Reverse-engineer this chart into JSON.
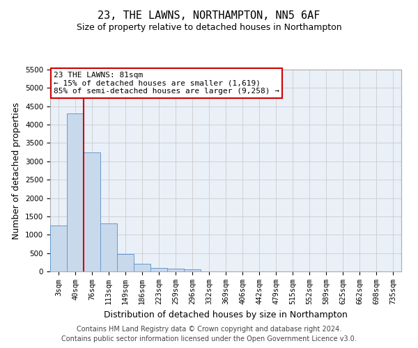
{
  "title": "23, THE LAWNS, NORTHAMPTON, NN5 6AF",
  "subtitle": "Size of property relative to detached houses in Northampton",
  "xlabel": "Distribution of detached houses by size in Northampton",
  "ylabel": "Number of detached properties",
  "footer_line1": "Contains HM Land Registry data © Crown copyright and database right 2024.",
  "footer_line2": "Contains public sector information licensed under the Open Government Licence v3.0.",
  "annotation_line1": "23 THE LAWNS: 81sqm",
  "annotation_line2": "← 15% of detached houses are smaller (1,619)",
  "annotation_line3": "85% of semi-detached houses are larger (9,258) →",
  "bar_categories": [
    "3sqm",
    "40sqm",
    "76sqm",
    "113sqm",
    "149sqm",
    "186sqm",
    "223sqm",
    "259sqm",
    "296sqm",
    "332sqm",
    "369sqm",
    "406sqm",
    "442sqm",
    "479sqm",
    "515sqm",
    "552sqm",
    "589sqm",
    "625sqm",
    "662sqm",
    "698sqm",
    "735sqm"
  ],
  "bar_values": [
    1250,
    4300,
    3250,
    1300,
    480,
    210,
    100,
    70,
    50,
    0,
    0,
    0,
    0,
    0,
    0,
    0,
    0,
    0,
    0,
    0,
    0
  ],
  "bar_color": "#c9d9ec",
  "bar_edge_color": "#6699cc",
  "grid_color": "#cccccc",
  "background_color": "#eaf0f8",
  "vline_color": "#cc0000",
  "vline_x": 1.5,
  "ylim": [
    0,
    5500
  ],
  "yticks": [
    0,
    500,
    1000,
    1500,
    2000,
    2500,
    3000,
    3500,
    4000,
    4500,
    5000,
    5500
  ],
  "annotation_box_facecolor": "#ffffff",
  "annotation_box_edgecolor": "#cc0000",
  "title_fontsize": 11,
  "subtitle_fontsize": 9,
  "axis_label_fontsize": 9,
  "tick_fontsize": 7.5,
  "footer_fontsize": 7,
  "annotation_fontsize": 8
}
